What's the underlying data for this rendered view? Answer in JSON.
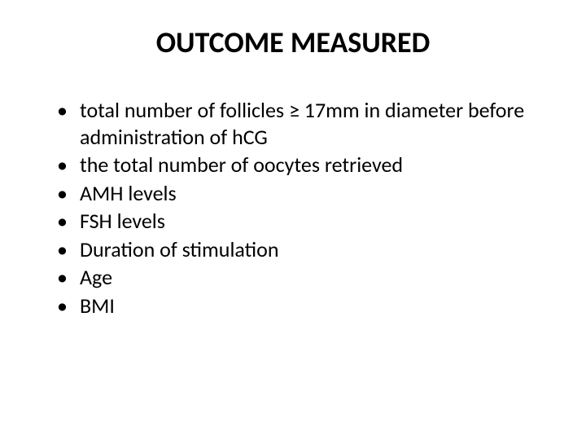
{
  "title": {
    "text": "OUTCOME MEASURED",
    "fontsize": 36,
    "fontweight": "bold",
    "color": "#000000"
  },
  "bullets": {
    "fontsize": 26,
    "color": "#000000",
    "items": [
      "total number of follicles ≥ 17mm in diameter before administration of hCG",
      " the total number of oocytes retrieved",
      "AMH levels",
      "FSH levels",
      "Duration of stimulation",
      "Age",
      "BMI"
    ]
  },
  "background_color": "#ffffff"
}
